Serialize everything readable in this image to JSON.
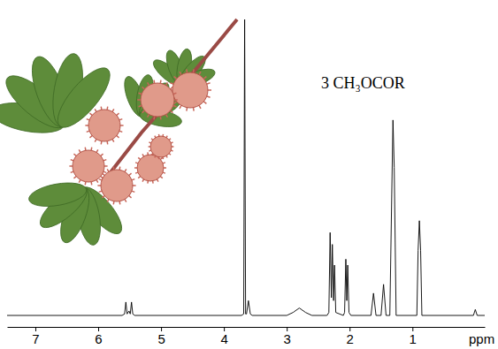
{
  "chart_data": {
    "type": "line",
    "x": [
      7.45,
      5.62,
      5.58,
      5.56,
      5.54,
      5.51,
      5.49,
      5.47,
      5.45,
      5.42,
      3.72,
      3.685,
      3.67,
      3.655,
      3.64,
      3.61,
      3.58,
      3.55,
      3.0,
      2.9,
      2.8,
      2.7,
      2.6,
      2.36,
      2.33,
      2.31,
      2.29,
      2.275,
      2.255,
      2.24,
      2.22,
      2.1,
      2.08,
      2.06,
      2.045,
      2.03,
      2.01,
      1.98,
      1.66,
      1.62,
      1.58,
      1.5,
      1.46,
      1.42,
      1.36,
      1.33,
      1.31,
      1.29,
      1.26,
      0.93,
      0.91,
      0.89,
      0.87,
      0.85,
      0.03,
      0.0,
      -0.03,
      -0.15
    ],
    "values": [
      0,
      0,
      0.5,
      4.5,
      0.5,
      1.5,
      0.5,
      4.5,
      0.5,
      0,
      0,
      0.5,
      100,
      0.5,
      0.5,
      5,
      0.5,
      0,
      0,
      1,
      2.5,
      1,
      0,
      0,
      1,
      28,
      6,
      24,
      5,
      17,
      1,
      0,
      1,
      19,
      5,
      17,
      1,
      0,
      0,
      7.5,
      0,
      0,
      10.5,
      0,
      0,
      40,
      66,
      50,
      0,
      0,
      22,
      32,
      22,
      0,
      0,
      2,
      0,
      0
    ],
    "color": "#000000",
    "xlim": [
      7.45,
      -0.15
    ],
    "xticks": [
      7,
      6,
      5,
      4,
      3,
      2,
      1
    ],
    "ylim": [
      0,
      100
    ],
    "tick_labels": "x",
    "xlabel": "ppm",
    "annotation": "3 CH₃OCOR"
  }
}
